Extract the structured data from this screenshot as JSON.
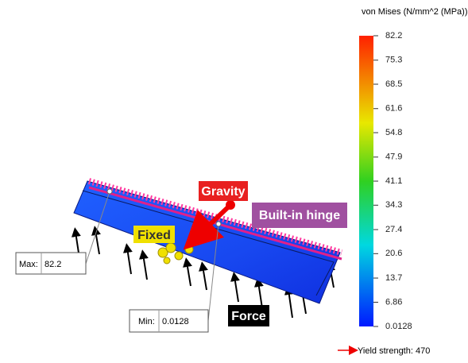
{
  "legend": {
    "title": "von Mises (N/mm^2 (MPa))",
    "ticks": [
      82.2,
      75.3,
      68.5,
      61.6,
      54.8,
      47.9,
      41.1,
      34.3,
      27.4,
      20.6,
      13.7,
      6.86,
      0.0128
    ],
    "yield_strength": "Yield strength: 470"
  },
  "annotations": {
    "gravity": "Gravity",
    "hinge": "Built-in hinge",
    "fixed": "Fixed",
    "force": "Force"
  },
  "max_probe": {
    "label": "Max:",
    "value": 82.2
  },
  "min_probe": {
    "label": "Min:",
    "value": 0.0128
  }
}
